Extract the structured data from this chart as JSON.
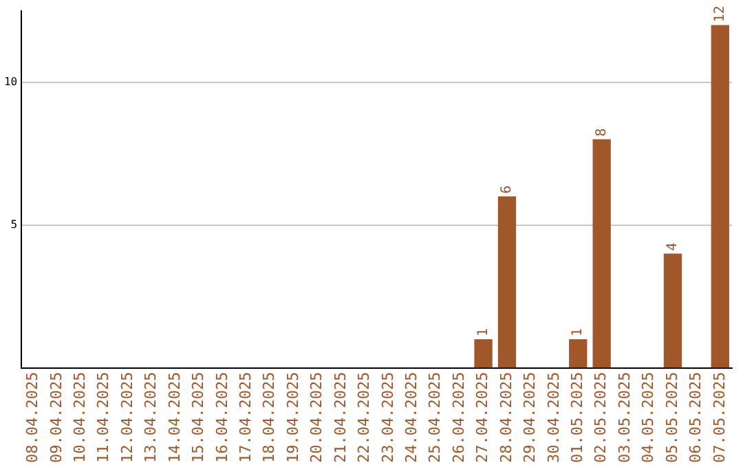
{
  "chart_data": {
    "type": "bar",
    "categories": [
      "08.04.2025",
      "09.04.2025",
      "10.04.2025",
      "11.04.2025",
      "12.04.2025",
      "13.04.2025",
      "14.04.2025",
      "15.04.2025",
      "16.04.2025",
      "17.04.2025",
      "18.04.2025",
      "19.04.2025",
      "20.04.2025",
      "21.04.2025",
      "22.04.2025",
      "23.04.2025",
      "24.04.2025",
      "25.04.2025",
      "26.04.2025",
      "27.04.2025",
      "28.04.2025",
      "29.04.2025",
      "30.04.2025",
      "01.05.2025",
      "02.05.2025",
      "03.05.2025",
      "04.05.2025",
      "05.05.2025",
      "06.05.2025",
      "07.05.2025"
    ],
    "values": [
      0,
      0,
      0,
      0,
      0,
      0,
      0,
      0,
      0,
      0,
      0,
      0,
      0,
      0,
      0,
      0,
      0,
      0,
      0,
      1,
      6,
      0,
      0,
      1,
      8,
      0,
      0,
      4,
      0,
      12
    ],
    "value_labels": [
      null,
      null,
      null,
      null,
      null,
      null,
      null,
      null,
      null,
      null,
      null,
      null,
      null,
      null,
      null,
      null,
      null,
      null,
      null,
      "1",
      "6",
      null,
      null,
      "1",
      "8",
      null,
      null,
      "4",
      null,
      "12"
    ],
    "color": "#a0582a",
    "ylim": [
      0,
      12.5
    ],
    "yticks": [
      5,
      10
    ],
    "grid": "y",
    "legend": false
  }
}
